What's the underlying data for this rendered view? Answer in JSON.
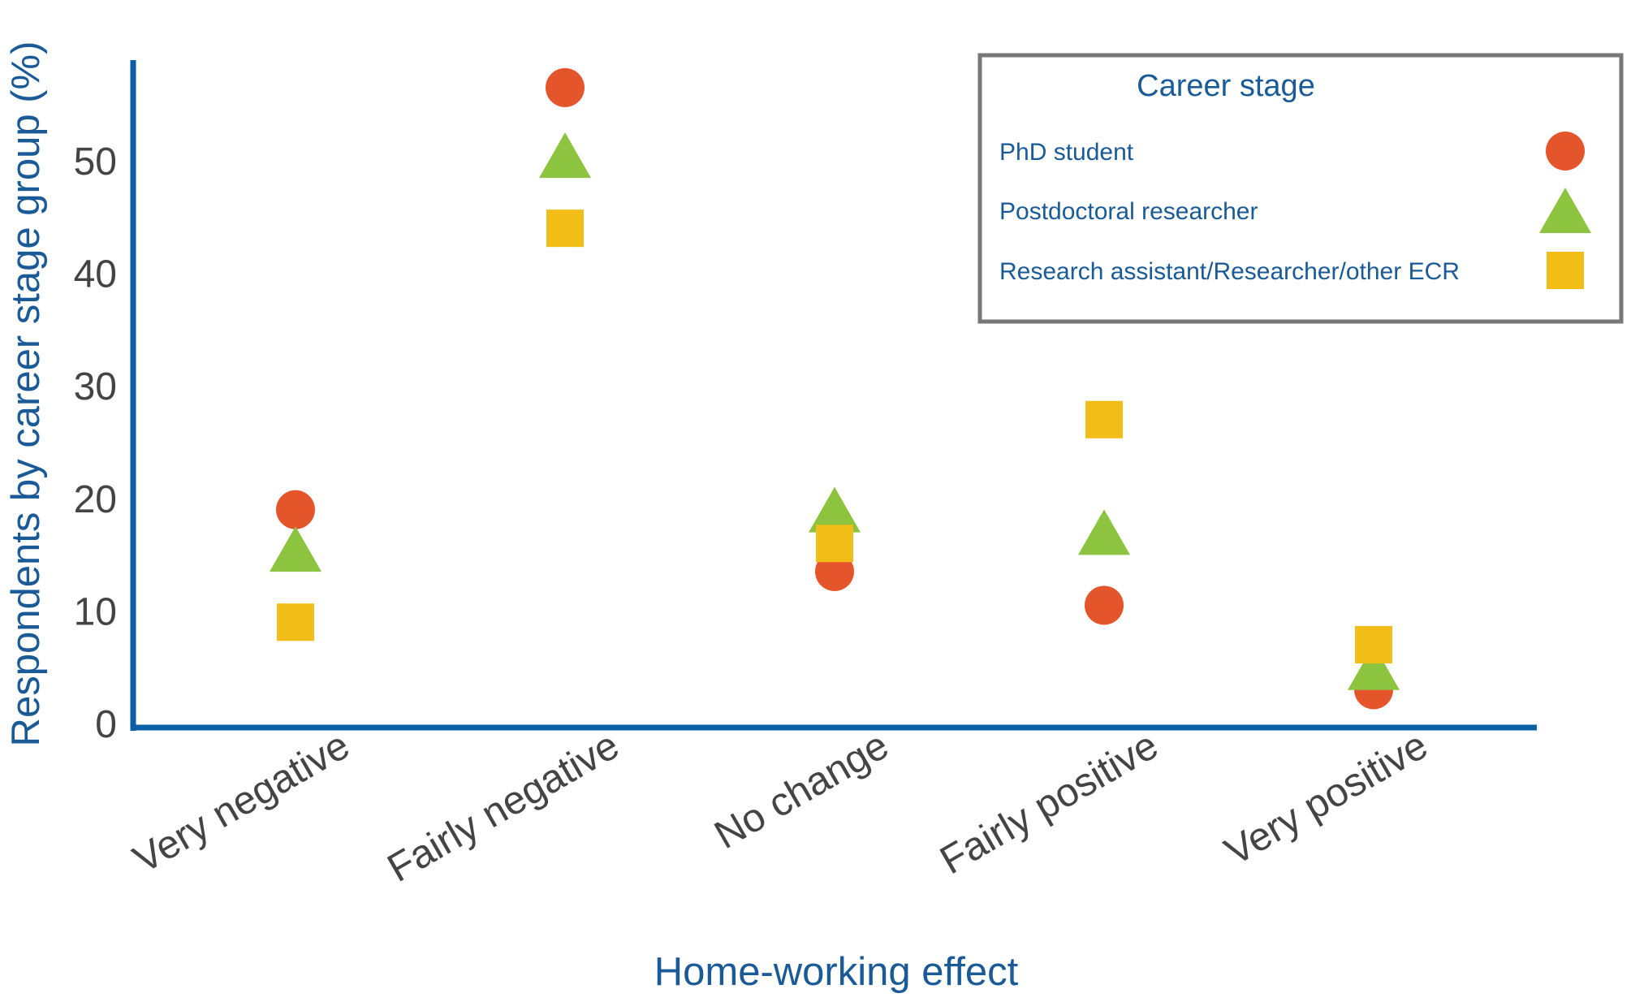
{
  "chart_data": {
    "type": "scatter",
    "xlabel": "Home-working effect",
    "ylabel": "Respondents by career stage group (%)",
    "categories": [
      "Very negative",
      "Fairly negative",
      "No change",
      "Fairly positive",
      "Very positive"
    ],
    "yticks": [
      0,
      10,
      20,
      30,
      40,
      50
    ],
    "ylim": [
      0,
      60
    ],
    "grid": false,
    "legend": {
      "title": "Career stage",
      "placement": "top-right"
    },
    "series": [
      {
        "name": "PhD student",
        "marker": "circle",
        "color": "#e5552b",
        "values": [
          19,
          56.5,
          13.5,
          10.5,
          3
        ]
      },
      {
        "name": "Postdoctoral researcher",
        "marker": "triangle",
        "color": "#8cc43f",
        "values": [
          15.5,
          50.5,
          19,
          17,
          5
        ]
      },
      {
        "name": "Research assistant/Researcher/other ECR",
        "marker": "square",
        "color": "#f1bd16",
        "values": [
          9,
          44,
          16,
          27,
          7
        ]
      }
    ],
    "colors": {
      "axis": "#0b5fa5",
      "label": "#1a5a96",
      "tick": "#444444",
      "legend_border": "#777777"
    }
  }
}
